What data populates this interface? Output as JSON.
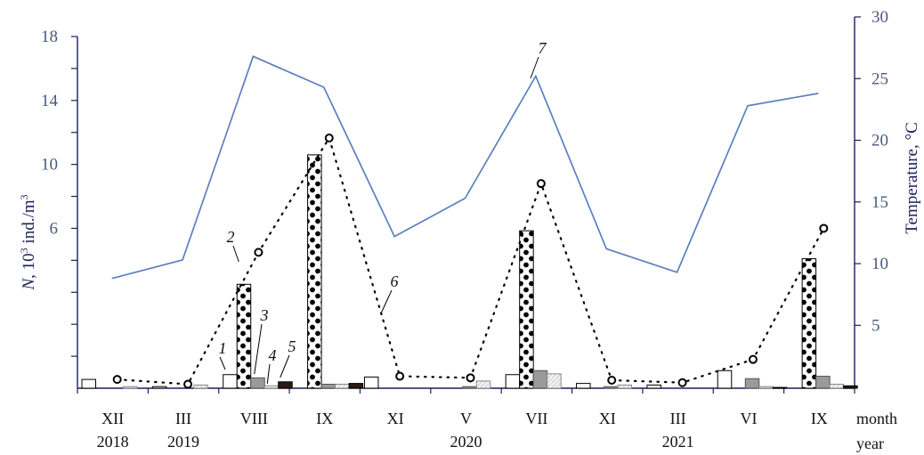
{
  "chart_data": {
    "type": "bar",
    "categories": [
      {
        "month": "XII",
        "year": "2018"
      },
      {
        "month": "III",
        "year": "2019"
      },
      {
        "month": "VIII",
        "year": ""
      },
      {
        "month": "IX",
        "year": ""
      },
      {
        "month": "XI",
        "year": ""
      },
      {
        "month": "V",
        "year": "2020"
      },
      {
        "month": "VII",
        "year": ""
      },
      {
        "month": "XI",
        "year": ""
      },
      {
        "month": "III",
        "year": "2021"
      },
      {
        "month": "VI",
        "year": ""
      },
      {
        "month": "IX",
        "year": ""
      }
    ],
    "x_axis_end_labels": {
      "month": "month",
      "year": "year"
    },
    "y_left": {
      "label_italic": "N",
      "label_rest": ", 10",
      "label_sup": "3",
      "label_rest2": " ind./m",
      "label_sup2": "3",
      "ticks": [
        6,
        10,
        14,
        18
      ],
      "ylim": [
        -4,
        18
      ]
    },
    "y_right": {
      "label": "Temperature, °C",
      "ticks": [
        5,
        10,
        15,
        20,
        25,
        30
      ],
      "ylim": [
        -0.1,
        30
      ]
    },
    "series": [
      {
        "marker": "1",
        "style": "white",
        "values": [
          0.55,
          0.1,
          0.85,
          0,
          0.7,
          0,
          0.85,
          0.3,
          0.2,
          1.1,
          0
        ]
      },
      {
        "marker": "2",
        "style": "dots",
        "values": [
          0,
          0,
          6.5,
          14.6,
          0,
          0,
          9.85,
          0,
          0,
          0,
          8.1
        ]
      },
      {
        "marker": "3",
        "style": "gray",
        "values": [
          0,
          0,
          0.65,
          0.25,
          0,
          0.1,
          1.1,
          0.1,
          0,
          0.6,
          0.75
        ]
      },
      {
        "marker": "4",
        "style": "light",
        "values": [
          0.1,
          0.2,
          0.15,
          0.25,
          0,
          0.45,
          0.9,
          0.2,
          0,
          0.1,
          0.25
        ]
      },
      {
        "marker": "5",
        "style": "dark",
        "values": [
          0,
          0,
          0.4,
          0.3,
          0,
          0,
          0,
          0,
          0,
          0.05,
          0.15
        ]
      }
    ],
    "total_dotted": {
      "marker": "6",
      "values": [
        0.55,
        0.25,
        8.5,
        15.65,
        0.75,
        0.65,
        12.8,
        0.5,
        0.35,
        1.8,
        10.0
      ]
    },
    "temperature_line": {
      "marker": "7",
      "color": "#5b7fbf",
      "values": [
        8.8,
        10.3,
        26.8,
        24.3,
        12.2,
        15.3,
        25.2,
        11.2,
        9.3,
        22.8,
        23.8
      ]
    },
    "grid": false,
    "legend": "none (numbered markers)"
  }
}
